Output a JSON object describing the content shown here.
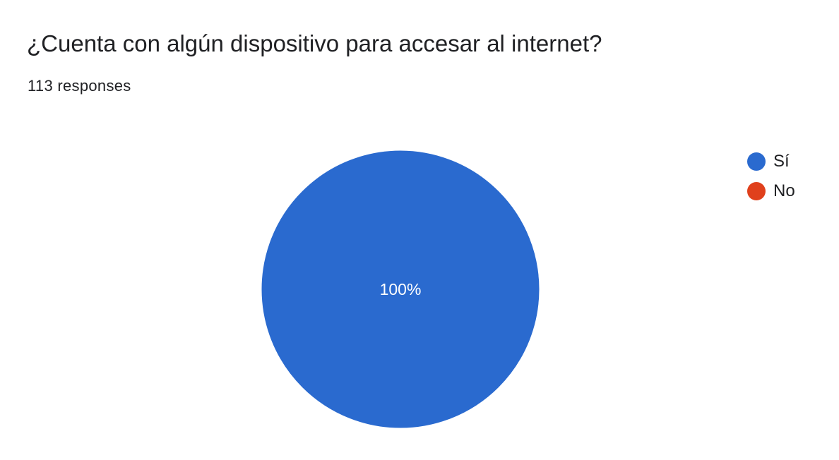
{
  "form": {
    "question": "¿Cuenta con algún dispositivo para accesar al internet?",
    "responses_text": "113 responses"
  },
  "chart_data": {
    "type": "pie",
    "title": "¿Cuenta con algún dispositivo para accesar al internet?",
    "total_responses": 113,
    "slices": [
      {
        "label": "Sí",
        "percent": 100,
        "color": "#2a6acf",
        "value_label": "100%"
      },
      {
        "label": "No",
        "percent": 0,
        "color": "#e0401c",
        "value_label": ""
      }
    ],
    "legend_position": "right"
  }
}
